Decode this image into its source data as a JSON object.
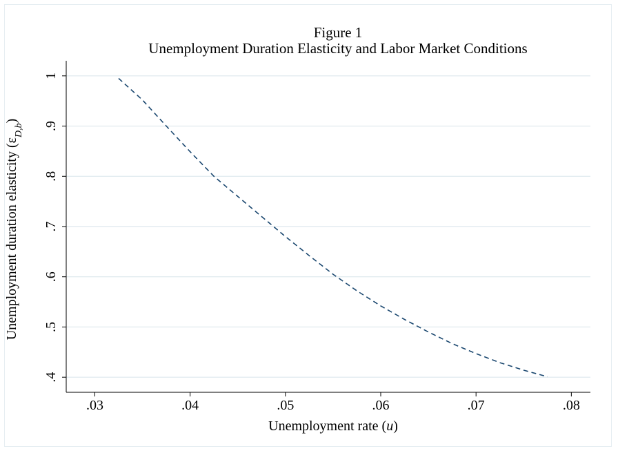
{
  "chart_data": {
    "type": "line",
    "title": "Figure 1",
    "subtitle": "Unemployment Duration Elasticity and Labor Market Conditions",
    "xlabel": {
      "text": "Unemployment rate (",
      "italic": "u",
      "suffix": ")"
    },
    "ylabel": {
      "text": "Unemployment duration elasticity (ε",
      "sub": "D,b",
      "suffix": ")"
    },
    "xlim": [
      0.027,
      0.082
    ],
    "ylim": [
      0.37,
      1.03
    ],
    "xticks": [
      0.03,
      0.04,
      0.05,
      0.06,
      0.07,
      0.08
    ],
    "xtick_labels": [
      ".03",
      ".04",
      ".05",
      ".06",
      ".07",
      ".08"
    ],
    "yticks": [
      0.4,
      0.5,
      0.6,
      0.7,
      0.8,
      0.9,
      1.0
    ],
    "ytick_labels": [
      ".4",
      ".5",
      ".6",
      ".7",
      ".8",
      ".9",
      "1"
    ],
    "grid": true,
    "line_style": "dashed",
    "color": "#1a476f",
    "series": [
      {
        "x": [
          0.0325,
          0.035,
          0.0375,
          0.04,
          0.0425,
          0.045,
          0.0475,
          0.05,
          0.0525,
          0.055,
          0.0575,
          0.06,
          0.0625,
          0.065,
          0.0675,
          0.07,
          0.0725,
          0.075,
          0.0775
        ],
        "y": [
          0.995,
          0.952,
          0.9,
          0.849,
          0.8,
          0.76,
          0.72,
          0.68,
          0.642,
          0.605,
          0.572,
          0.542,
          0.515,
          0.49,
          0.467,
          0.447,
          0.429,
          0.414,
          0.401
        ]
      }
    ]
  }
}
